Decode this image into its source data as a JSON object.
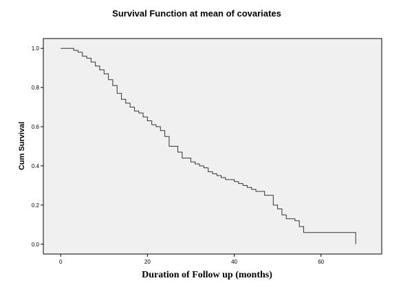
{
  "chart_data": {
    "type": "line",
    "title": "Survival Function at mean of covariates",
    "xlabel": "Duration of Follow up (months)",
    "ylabel": "Cum Survival",
    "xlim": [
      -4,
      74
    ],
    "ylim": [
      -0.05,
      1.05
    ],
    "xticks": [
      0,
      20,
      40,
      60
    ],
    "yticks": [
      0.0,
      0.2,
      0.4,
      0.6,
      0.8,
      1.0
    ],
    "ytick_labels": [
      "0.0",
      "0.2",
      "0.4",
      "0.6",
      "0.8",
      "1.0"
    ],
    "grid": false,
    "plot_background": "#f0f0f0",
    "line_color": "#333333",
    "series": [
      {
        "step": "post",
        "x": [
          0,
          3,
          4,
          5,
          6,
          7,
          8,
          9,
          10,
          11,
          12,
          13,
          14,
          15,
          16,
          17,
          18,
          19,
          20,
          21,
          22,
          23,
          24,
          25,
          27,
          28,
          30,
          31,
          32,
          33,
          34,
          35,
          36,
          37,
          38,
          40,
          41,
          42,
          43,
          44,
          45,
          47,
          49,
          50,
          51,
          52,
          54,
          55,
          56,
          68,
          68
        ],
        "y": [
          1.0,
          0.99,
          0.98,
          0.96,
          0.95,
          0.93,
          0.91,
          0.89,
          0.87,
          0.84,
          0.81,
          0.77,
          0.74,
          0.72,
          0.7,
          0.68,
          0.67,
          0.65,
          0.63,
          0.61,
          0.6,
          0.58,
          0.55,
          0.5,
          0.47,
          0.44,
          0.42,
          0.41,
          0.4,
          0.39,
          0.37,
          0.36,
          0.35,
          0.34,
          0.33,
          0.32,
          0.31,
          0.3,
          0.29,
          0.28,
          0.27,
          0.25,
          0.2,
          0.18,
          0.15,
          0.13,
          0.12,
          0.09,
          0.06,
          0.06,
          0.0
        ]
      }
    ]
  }
}
